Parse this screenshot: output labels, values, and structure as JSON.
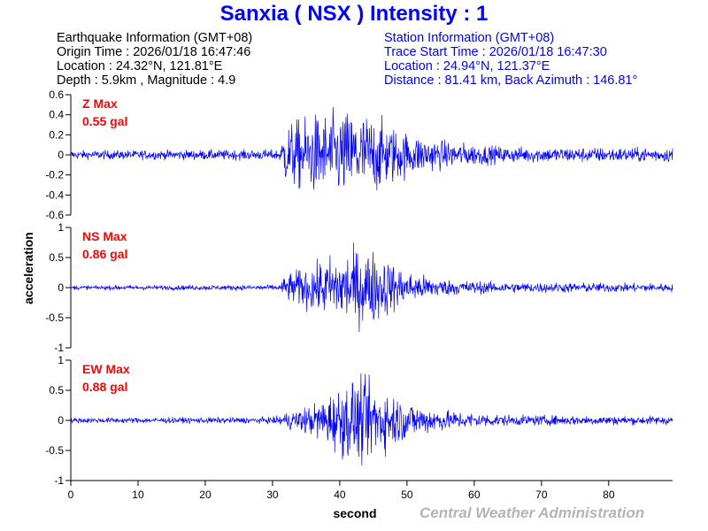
{
  "title": "Sanxia ( NSX ) Intensity : 1",
  "earthquake": {
    "heading": "Earthquake Information  (GMT+08)",
    "origin_time": "Origin Time : 2026/01/18 16:47:46",
    "location": "Location : 24.32°N, 121.81°E",
    "depth_magnitude": "Depth : 5.9km , Magnitude : 4.9"
  },
  "station": {
    "heading": "Station Information  (GMT+08)",
    "trace_start": "Trace Start Time : 2026/01/18 16:47:30",
    "location": "Location : 24.94°N, 121.37°E",
    "distance": "Distance : 81.41 km, Back Azimuth : 146.81°"
  },
  "footer": "Central Weather Administration",
  "colors": {
    "title": "#0000ff",
    "trace": "#0000ff",
    "max_label": "#ff0000",
    "footer": "#b4b4b4"
  },
  "chart_data": {
    "type": "line",
    "xlabel": "second",
    "ylabel": "acceleration",
    "xlim": [
      0,
      89.5
    ],
    "xticks": [
      0,
      10,
      20,
      30,
      40,
      50,
      60,
      70,
      80
    ],
    "panels": [
      {
        "component": "Z",
        "max_label": "Z Max",
        "max_value": "0.55 gal",
        "ylim": [
          -0.6,
          0.6
        ],
        "yticks": [
          -0.6,
          -0.4,
          -0.2,
          0,
          0.2,
          0.4,
          0.6
        ],
        "ytick_labels": [
          "-0.6",
          "-0.4",
          "-0.2",
          "0",
          "0.2",
          "0.4",
          "0.6"
        ],
        "envelope": {
          "t": [
            0,
            31,
            32,
            36,
            42,
            45,
            50,
            56,
            65,
            89.5
          ],
          "amp": [
            0.05,
            0.06,
            0.35,
            0.45,
            0.5,
            0.45,
            0.25,
            0.15,
            0.09,
            0.08
          ]
        }
      },
      {
        "component": "NS",
        "max_label": "NS Max",
        "max_value": "0.86 gal",
        "ylim": [
          -1,
          1
        ],
        "yticks": [
          -1,
          -0.5,
          0,
          0.5,
          1
        ],
        "ytick_labels": [
          "-1",
          "-0.5",
          "0",
          "0.5",
          "1"
        ],
        "envelope": {
          "t": [
            0,
            31,
            32,
            36,
            42,
            45,
            50,
            56,
            65,
            89.5
          ],
          "amp": [
            0.04,
            0.05,
            0.25,
            0.45,
            0.75,
            0.7,
            0.3,
            0.15,
            0.1,
            0.08
          ]
        }
      },
      {
        "component": "EW",
        "max_label": "EW Max",
        "max_value": "0.88 gal",
        "ylim": [
          -1,
          1
        ],
        "yticks": [
          -1,
          -0.5,
          0,
          0.5,
          1
        ],
        "ytick_labels": [
          "-1",
          "-0.5",
          "0",
          "0.5",
          "1"
        ],
        "envelope": {
          "t": [
            0,
            30,
            32,
            36,
            42,
            45,
            50,
            56,
            65,
            89.5
          ],
          "amp": [
            0.05,
            0.06,
            0.15,
            0.3,
            0.8,
            0.75,
            0.35,
            0.18,
            0.1,
            0.08
          ]
        }
      }
    ]
  }
}
